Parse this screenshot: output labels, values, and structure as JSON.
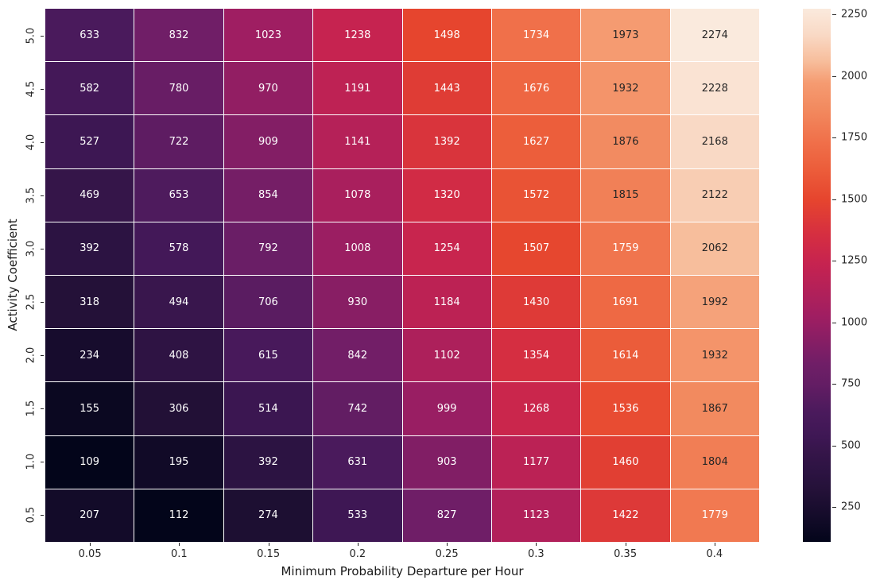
{
  "chart_data": {
    "type": "heatmap",
    "title": "",
    "xlabel": "Minimum Probability Departure per Hour",
    "ylabel": "Activity Coefficient",
    "x_categories": [
      "0.05",
      "0.1",
      "0.15",
      "0.2",
      "0.25",
      "0.3",
      "0.35",
      "0.4"
    ],
    "y_categories": [
      "5.0",
      "4.5",
      "4.0",
      "3.5",
      "3.0",
      "2.5",
      "2.0",
      "1.5",
      "1.0",
      "0.5"
    ],
    "values": [
      [
        633,
        832,
        1023,
        1238,
        1498,
        1734,
        1973,
        2274
      ],
      [
        582,
        780,
        970,
        1191,
        1443,
        1676,
        1932,
        2228
      ],
      [
        527,
        722,
        909,
        1141,
        1392,
        1627,
        1876,
        2168
      ],
      [
        469,
        653,
        854,
        1078,
        1320,
        1572,
        1815,
        2122
      ],
      [
        392,
        578,
        792,
        1008,
        1254,
        1507,
        1759,
        2062
      ],
      [
        318,
        494,
        706,
        930,
        1184,
        1430,
        1691,
        1992
      ],
      [
        234,
        408,
        615,
        842,
        1102,
        1354,
        1614,
        1932
      ],
      [
        155,
        306,
        514,
        742,
        999,
        1268,
        1536,
        1867
      ],
      [
        109,
        195,
        392,
        631,
        903,
        1177,
        1460,
        1804
      ],
      [
        207,
        112,
        274,
        533,
        827,
        1123,
        1422,
        1779
      ]
    ],
    "vmin": 109,
    "vmax": 2274,
    "grid_on": false,
    "cell_border_color": "#ffffff",
    "colormap": {
      "name": "rocket",
      "stops": [
        {
          "pos": 0.0,
          "color": "#03051A"
        },
        {
          "pos": 0.045,
          "color": "#130B29"
        },
        {
          "pos": 0.097,
          "color": "#241138"
        },
        {
          "pos": 0.131,
          "color": "#2C1342"
        },
        {
          "pos": 0.166,
          "color": "#351549"
        },
        {
          "pos": 0.196,
          "color": "#3E1754"
        },
        {
          "pos": 0.242,
          "color": "#4A1A5C"
        },
        {
          "pos": 0.296,
          "color": "#641D64"
        },
        {
          "pos": 0.334,
          "color": "#701E67"
        },
        {
          "pos": 0.422,
          "color": "#9F1E62"
        },
        {
          "pos": 0.521,
          "color": "#C62350"
        },
        {
          "pos": 0.575,
          "color": "#D52E41"
        },
        {
          "pos": 0.642,
          "color": "#E6452E"
        },
        {
          "pos": 0.701,
          "color": "#EC5E3B"
        },
        {
          "pos": 0.751,
          "color": "#F0704A"
        },
        {
          "pos": 0.812,
          "color": "#F28A5F"
        },
        {
          "pos": 0.861,
          "color": "#F59B71"
        },
        {
          "pos": 0.902,
          "color": "#F7BE9C"
        },
        {
          "pos": 0.951,
          "color": "#F9D9C5"
        },
        {
          "pos": 1.0,
          "color": "#FAEADD"
        }
      ]
    },
    "annotation": {
      "light_text_color": "#ffffff",
      "dark_text_color": "#262626",
      "dark_text_min_value": 1800
    },
    "colorbar": {
      "ticks": [
        "250",
        "500",
        "750",
        "1000",
        "1250",
        "1500",
        "1750",
        "2000",
        "2250"
      ],
      "position": "right"
    }
  }
}
